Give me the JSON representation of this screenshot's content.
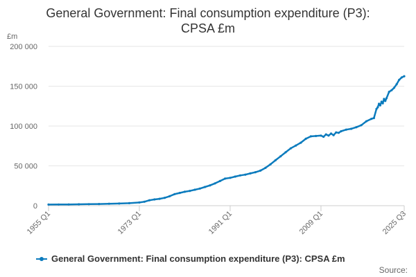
{
  "chart_data": {
    "type": "line",
    "title_lines": [
      "General Government: Final consumption expenditure (P3):",
      "CPSA £m"
    ],
    "ylabel": "£m",
    "xlabel": "",
    "ylim": [
      0,
      200000
    ],
    "y_ticks": [
      {
        "value": 0,
        "label": "0"
      },
      {
        "value": 50000,
        "label": "50 000"
      },
      {
        "value": 100000,
        "label": "100 000"
      },
      {
        "value": 150000,
        "label": "150 000"
      },
      {
        "value": 200000,
        "label": "200 000"
      }
    ],
    "x_range": [
      1955.0,
      2025.5
    ],
    "x_ticks": [
      {
        "value": 1955.0,
        "label": "1955 Q1"
      },
      {
        "value": 1973.0,
        "label": "1973 Q1"
      },
      {
        "value": 1991.0,
        "label": "1991 Q1"
      },
      {
        "value": 2009.0,
        "label": "2009 Q1"
      },
      {
        "value": 2025.5,
        "label": "2025 Q3"
      }
    ],
    "grid": true,
    "legend_position": "bottom-left",
    "series": [
      {
        "name": "General Government: Final consumption expenditure (P3): CPSA £m",
        "color": "#0b7bbd",
        "x": [
          1955,
          1957,
          1959,
          1961,
          1963,
          1965,
          1967,
          1969,
          1971,
          1973,
          1974,
          1975,
          1976,
          1977,
          1978,
          1979,
          1980,
          1981,
          1982,
          1983,
          1984,
          1985,
          1986,
          1987,
          1988,
          1989,
          1990,
          1991,
          1992,
          1993,
          1994,
          1995,
          1996,
          1997,
          1998,
          1999,
          2000,
          2001,
          2002,
          2003,
          2004,
          2005,
          2006,
          2007,
          2008,
          2009,
          2009.5,
          2010,
          2010.5,
          2011,
          2011.5,
          2012,
          2012.5,
          2013,
          2014,
          2015,
          2016,
          2017,
          2018,
          2019,
          2019.5,
          2020,
          2020.25,
          2020.5,
          2020.75,
          2021,
          2021.25,
          2021.5,
          2021.75,
          2022,
          2022.5,
          2023,
          2023.5,
          2024,
          2024.5,
          2025,
          2025.5
        ],
        "values": [
          1400,
          1500,
          1600,
          1700,
          1900,
          2100,
          2400,
          2700,
          3100,
          4000,
          5000,
          6800,
          7800,
          8600,
          9800,
          11800,
          14500,
          16000,
          17500,
          18500,
          20000,
          21500,
          23500,
          25500,
          28000,
          31000,
          34000,
          35000,
          36500,
          38000,
          39000,
          40500,
          42000,
          44000,
          47500,
          52000,
          57000,
          62000,
          67000,
          72000,
          75500,
          79000,
          84000,
          87000,
          87500,
          88000,
          86500,
          89500,
          88000,
          90500,
          88500,
          92000,
          91500,
          93500,
          95500,
          96500,
          98500,
          101000,
          106000,
          109000,
          110000,
          121500,
          123500,
          128000,
          126000,
          130500,
          128500,
          134000,
          131500,
          135000,
          143000,
          145000,
          148000,
          152500,
          158000,
          161000,
          162500
        ]
      }
    ]
  },
  "source_label": "Source:"
}
